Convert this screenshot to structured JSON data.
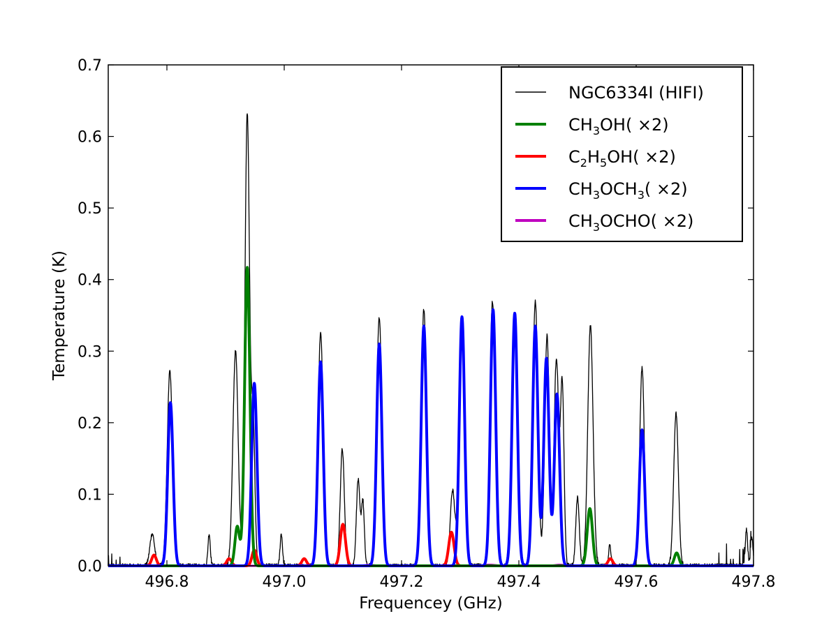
{
  "chart_data": {
    "type": "line",
    "title": "",
    "xlabel": "Frequencey (GHz)",
    "ylabel": "Temperature (K)",
    "xlim": [
      496.7,
      497.8
    ],
    "ylim": [
      0.0,
      0.7
    ],
    "grid": false,
    "legend_position": "top-right",
    "xticks": [
      496.8,
      497.0,
      497.2,
      497.4,
      497.6,
      497.8
    ],
    "xtick_labels": [
      "496.8",
      "497.0",
      "497.2",
      "497.4",
      "497.6",
      "497.8"
    ],
    "yticks": [
      0.0,
      0.1,
      0.2,
      0.3,
      0.4,
      0.5,
      0.6,
      0.7
    ],
    "ytick_labels": [
      "0.0",
      "0.1",
      "0.2",
      "0.3",
      "0.4",
      "0.5",
      "0.6",
      "0.7"
    ],
    "legend": [
      {
        "base": "NGC6334I (HIFI)",
        "color": "#000000"
      },
      {
        "pre": "CH",
        "sub": "3",
        "post": "OH( ×2)",
        "color": "#008000"
      },
      {
        "pre": "C",
        "sub": "2",
        "mid": "H",
        "sub2": "5",
        "post": "OH( ×2)",
        "color": "#ff0000"
      },
      {
        "pre": "CH",
        "sub": "3",
        "mid": "OCH",
        "sub2": "3",
        "post": "( ×2)",
        "color": "#0000ff"
      },
      {
        "pre": "CH",
        "sub": "3",
        "post": "OCHO( ×2)",
        "color": "#bf00bf"
      }
    ],
    "series": [
      {
        "name": "NGC6334I (HIFI)",
        "color": "#000000",
        "width": 1.3,
        "noise": true,
        "lines": [
          [
            496.775,
            0.045,
            0.004
          ],
          [
            496.805,
            0.272,
            0.0045
          ],
          [
            496.872,
            0.045,
            0.002
          ],
          [
            496.917,
            0.3,
            0.0045
          ],
          [
            496.937,
            0.632,
            0.004
          ],
          [
            496.947,
            0.2,
            0.003
          ],
          [
            496.995,
            0.045,
            0.002
          ],
          [
            497.062,
            0.325,
            0.0045
          ],
          [
            497.099,
            0.163,
            0.0035
          ],
          [
            497.126,
            0.12,
            0.003
          ],
          [
            497.134,
            0.09,
            0.0025
          ],
          [
            497.162,
            0.348,
            0.0045
          ],
          [
            497.238,
            0.358,
            0.0045
          ],
          [
            497.287,
            0.105,
            0.004
          ],
          [
            497.303,
            0.345,
            0.0045
          ],
          [
            497.355,
            0.37,
            0.0045
          ],
          [
            497.393,
            0.35,
            0.0045
          ],
          [
            497.428,
            0.37,
            0.0045
          ],
          [
            497.448,
            0.322,
            0.004
          ],
          [
            497.464,
            0.29,
            0.004
          ],
          [
            497.474,
            0.25,
            0.003
          ],
          [
            497.5,
            0.095,
            0.003
          ],
          [
            497.522,
            0.335,
            0.0045
          ],
          [
            497.555,
            0.03,
            0.002
          ],
          [
            497.61,
            0.277,
            0.004
          ],
          [
            497.668,
            0.213,
            0.004
          ],
          [
            497.788,
            0.05,
            0.002
          ],
          [
            497.797,
            0.04,
            0.002
          ]
        ]
      },
      {
        "name": "CH3OH( ×2)",
        "color": "#008000",
        "width": 4,
        "lines": [
          [
            496.92,
            0.055,
            0.004
          ],
          [
            496.937,
            0.417,
            0.0045
          ],
          [
            497.521,
            0.08,
            0.0045
          ],
          [
            497.669,
            0.018,
            0.004
          ]
        ]
      },
      {
        "name": "C2H5OH( ×2)",
        "color": "#ff0000",
        "width": 4,
        "lines": [
          [
            496.778,
            0.015,
            0.004
          ],
          [
            496.906,
            0.01,
            0.004
          ],
          [
            496.949,
            0.022,
            0.004
          ],
          [
            497.034,
            0.01,
            0.004
          ],
          [
            497.1,
            0.058,
            0.0045
          ],
          [
            497.285,
            0.047,
            0.0045
          ],
          [
            497.556,
            0.01,
            0.004
          ]
        ]
      },
      {
        "name": "CH3OCH3( ×2)",
        "color": "#0000ff",
        "width": 4,
        "lines": [
          [
            496.806,
            0.228,
            0.0045
          ],
          [
            496.949,
            0.255,
            0.0045
          ],
          [
            497.062,
            0.285,
            0.0045
          ],
          [
            497.162,
            0.31,
            0.0045
          ],
          [
            497.238,
            0.335,
            0.0045
          ],
          [
            497.303,
            0.348,
            0.0045
          ],
          [
            497.356,
            0.358,
            0.0045
          ],
          [
            497.393,
            0.353,
            0.0045
          ],
          [
            497.428,
            0.335,
            0.0045
          ],
          [
            497.447,
            0.29,
            0.0045
          ],
          [
            497.465,
            0.24,
            0.0045
          ],
          [
            497.61,
            0.19,
            0.0045
          ]
        ]
      },
      {
        "name": "CH3OCHO( ×2)",
        "color": "#bf00bf",
        "width": 3,
        "lines": [
          [
            497.145,
            0.001,
            0.01
          ],
          [
            497.35,
            0.0015,
            0.01
          ],
          [
            497.47,
            0.0015,
            0.008
          ]
        ]
      }
    ]
  }
}
